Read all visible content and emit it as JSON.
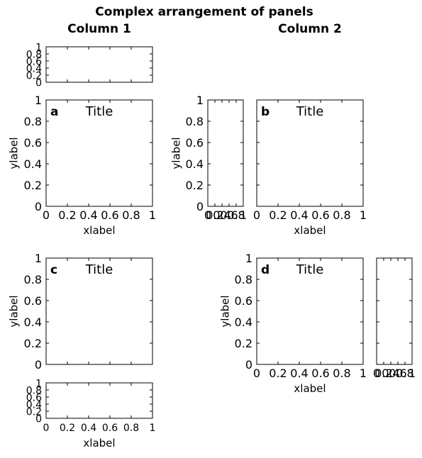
{
  "figure": {
    "suptitle": "Complex arrangement of panels",
    "column_titles": [
      "Column 1",
      "Column 2"
    ]
  },
  "chart_data": [
    {
      "id": "top-small",
      "type": "line",
      "series": [],
      "xlim": [
        0,
        1
      ],
      "ylim": [
        0,
        1
      ],
      "xticks": [],
      "yticks": [
        "0",
        "0.2",
        "0.4",
        "0.6",
        "0.8",
        "1"
      ],
      "title": "",
      "panel_label": "",
      "xlabel": "",
      "ylabel": ""
    },
    {
      "id": "a",
      "type": "line",
      "series": [],
      "xlim": [
        0,
        1
      ],
      "ylim": [
        0,
        1
      ],
      "xticks": [
        "0",
        "0.2",
        "0.4",
        "0.6",
        "0.8",
        "1"
      ],
      "yticks": [
        "0",
        "0.2",
        "0.4",
        "0.6",
        "0.8",
        "1"
      ],
      "title": "Title",
      "panel_label": "a",
      "xlabel": "xlabel",
      "ylabel": "ylabel"
    },
    {
      "id": "narrow-left-b",
      "type": "line",
      "series": [],
      "xlim": [
        0,
        1
      ],
      "ylim": [
        0,
        1
      ],
      "xticks": [
        "0",
        "0.2",
        "0.4",
        "0.6",
        "0.8",
        "1"
      ],
      "yticks": [
        "0",
        "0.2",
        "0.4",
        "0.6",
        "0.8",
        "1"
      ],
      "title": "",
      "panel_label": "",
      "xlabel": "",
      "ylabel": "ylabel"
    },
    {
      "id": "b",
      "type": "line",
      "series": [],
      "xlim": [
        0,
        1
      ],
      "ylim": [
        0,
        1
      ],
      "xticks": [
        "0",
        "0.2",
        "0.4",
        "0.6",
        "0.8",
        "1"
      ],
      "yticks": [],
      "title": "Title",
      "panel_label": "b",
      "xlabel": "xlabel",
      "ylabel": ""
    },
    {
      "id": "c",
      "type": "line",
      "series": [],
      "xlim": [
        0,
        1
      ],
      "ylim": [
        0,
        1
      ],
      "xticks": [],
      "yticks": [
        "0",
        "0.2",
        "0.4",
        "0.6",
        "0.8",
        "1"
      ],
      "title": "Title",
      "panel_label": "c",
      "xlabel": "",
      "ylabel": "ylabel"
    },
    {
      "id": "bottom-small",
      "type": "line",
      "series": [],
      "xlim": [
        0,
        1
      ],
      "ylim": [
        0,
        1
      ],
      "xticks": [
        "0",
        "0.2",
        "0.4",
        "0.6",
        "0.8",
        "1"
      ],
      "yticks": [
        "0",
        "0.2",
        "0.4",
        "0.6",
        "0.8",
        "1"
      ],
      "title": "",
      "panel_label": "",
      "xlabel": "xlabel",
      "ylabel": ""
    },
    {
      "id": "d",
      "type": "line",
      "series": [],
      "xlim": [
        0,
        1
      ],
      "ylim": [
        0,
        1
      ],
      "xticks": [
        "0",
        "0.2",
        "0.4",
        "0.6",
        "0.8",
        "1"
      ],
      "yticks": [
        "0",
        "0.2",
        "0.4",
        "0.6",
        "0.8",
        "1"
      ],
      "title": "Title",
      "panel_label": "d",
      "xlabel": "xlabel",
      "ylabel": "ylabel"
    },
    {
      "id": "narrow-right-d",
      "type": "line",
      "series": [],
      "xlim": [
        0,
        1
      ],
      "ylim": [
        0,
        1
      ],
      "xticks": [
        "0",
        "0.2",
        "0.4",
        "0.6",
        "0.8",
        "1"
      ],
      "yticks": [],
      "title": "",
      "panel_label": "",
      "xlabel": "",
      "ylabel": ""
    }
  ]
}
